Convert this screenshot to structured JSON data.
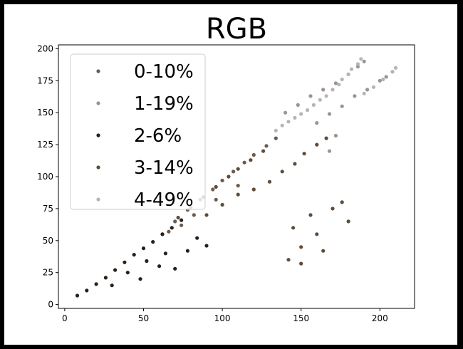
{
  "chart_data": {
    "type": "scatter",
    "title": "RGB",
    "xlabel": "",
    "ylabel": "",
    "xlim": [
      -4,
      222
    ],
    "ylim": [
      -3,
      203
    ],
    "xticks": [
      0,
      50,
      100,
      150,
      200
    ],
    "yticks": [
      0,
      25,
      50,
      75,
      100,
      125,
      150,
      175,
      200
    ],
    "grid": false,
    "legend_position": "top-left",
    "series": [
      {
        "name": "0-10%",
        "color": "#6b5a4e",
        "values": [
          [
            62,
            55
          ],
          [
            70,
            65
          ],
          [
            78,
            74
          ],
          [
            86,
            82
          ],
          [
            94,
            90
          ],
          [
            100,
            97
          ],
          [
            107,
            104
          ],
          [
            114,
            111
          ],
          [
            120,
            117
          ],
          [
            128,
            124
          ],
          [
            134,
            130
          ],
          [
            110,
            93
          ],
          [
            96,
            82
          ],
          [
            82,
            70
          ],
          [
            74,
            62
          ],
          [
            66,
            57
          ]
        ]
      },
      {
        "name": "1-19%",
        "color": "#9d9391",
        "values": [
          [
            140,
            150
          ],
          [
            148,
            156
          ],
          [
            156,
            163
          ],
          [
            164,
            168
          ],
          [
            172,
            173
          ],
          [
            180,
            180
          ],
          [
            186,
            186
          ],
          [
            190,
            190
          ],
          [
            160,
            142
          ],
          [
            168,
            149
          ],
          [
            176,
            155
          ],
          [
            184,
            163
          ],
          [
            192,
            168
          ],
          [
            200,
            175
          ],
          [
            208,
            182
          ],
          [
            204,
            178
          ],
          [
            172,
            132
          ],
          [
            168,
            120
          ]
        ]
      },
      {
        "name": "2-6%",
        "color": "#2a2018",
        "values": [
          [
            8,
            7
          ],
          [
            14,
            11
          ],
          [
            20,
            16
          ],
          [
            26,
            21
          ],
          [
            32,
            27
          ],
          [
            38,
            33
          ],
          [
            44,
            39
          ],
          [
            50,
            44
          ],
          [
            56,
            49
          ],
          [
            62,
            55
          ],
          [
            68,
            60
          ],
          [
            74,
            66
          ],
          [
            40,
            25
          ],
          [
            52,
            34
          ],
          [
            64,
            40
          ],
          [
            78,
            42
          ],
          [
            90,
            46
          ],
          [
            60,
            30
          ],
          [
            70,
            28
          ],
          [
            48,
            20
          ],
          [
            30,
            15
          ],
          [
            84,
            52
          ]
        ]
      },
      {
        "name": "3-14%",
        "color": "#5e4c3c",
        "values": [
          [
            72,
            68
          ],
          [
            80,
            76
          ],
          [
            88,
            84
          ],
          [
            96,
            92
          ],
          [
            104,
            100
          ],
          [
            110,
            106
          ],
          [
            118,
            113
          ],
          [
            126,
            120
          ],
          [
            90,
            70
          ],
          [
            100,
            78
          ],
          [
            110,
            86
          ],
          [
            120,
            90
          ],
          [
            130,
            96
          ],
          [
            138,
            104
          ],
          [
            146,
            110
          ],
          [
            152,
            118
          ],
          [
            160,
            125
          ],
          [
            166,
            130
          ],
          [
            145,
            60
          ],
          [
            150,
            45
          ],
          [
            160,
            55
          ],
          [
            170,
            75
          ],
          [
            180,
            65
          ],
          [
            156,
            70
          ],
          [
            176,
            80
          ],
          [
            142,
            35
          ],
          [
            150,
            32
          ],
          [
            164,
            42
          ]
        ]
      },
      {
        "name": "4-49%",
        "color": "#b8b4b4",
        "values": [
          [
            134,
            136
          ],
          [
            142,
            143
          ],
          [
            150,
            149
          ],
          [
            158,
            156
          ],
          [
            166,
            163
          ],
          [
            174,
            172
          ],
          [
            180,
            180
          ],
          [
            186,
            188
          ],
          [
            188,
            192
          ],
          [
            182,
            184
          ],
          [
            176,
            176
          ],
          [
            170,
            168
          ],
          [
            162,
            160
          ],
          [
            154,
            152
          ],
          [
            146,
            146
          ],
          [
            138,
            140
          ],
          [
            190,
            165
          ],
          [
            196,
            170
          ],
          [
            202,
            176
          ],
          [
            208,
            182
          ],
          [
            210,
            185
          ]
        ]
      }
    ]
  }
}
